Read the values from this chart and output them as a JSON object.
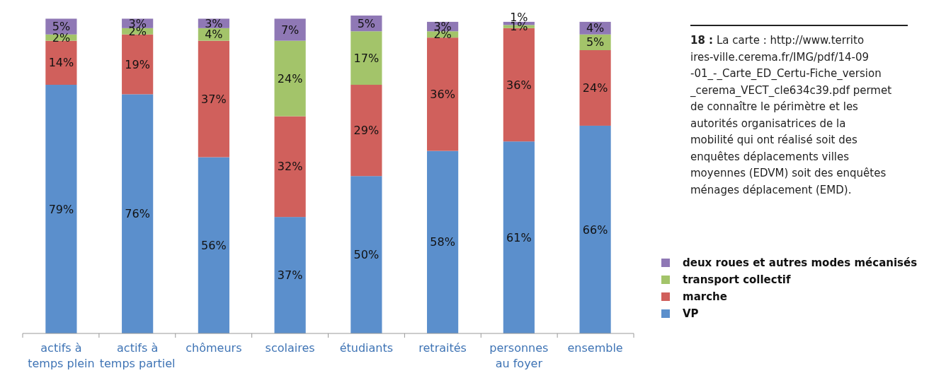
{
  "chart_data": {
    "type": "bar",
    "stacked": true,
    "legend": "right",
    "categories": [
      "actifs à temps plein",
      "actifs à temps partiel",
      "chômeurs",
      "scolaires",
      "étudiants",
      "retraités",
      "personnes au foyer",
      "ensemble"
    ],
    "series": [
      {
        "name": "VP",
        "color": "#5b8fcc",
        "values": [
          79,
          76,
          56,
          37,
          50,
          58,
          61,
          66
        ],
        "value_labels": [
          "79%",
          "76%",
          "56%",
          "37%",
          "50%",
          "58%",
          "61%",
          "66%"
        ]
      },
      {
        "name": "marche",
        "color": "#d0605c",
        "values": [
          14,
          19,
          37,
          32,
          29,
          36,
          36,
          24
        ],
        "value_labels": [
          "14%",
          "19%",
          "37%",
          "32%",
          "29%",
          "36%",
          "36%",
          "24%"
        ]
      },
      {
        "name": "transport collectif",
        "color": "#a3c46a",
        "values": [
          2,
          2,
          4,
          24,
          17,
          2,
          1,
          5
        ],
        "value_labels": [
          "2%",
          "2%",
          "4%",
          "24%",
          "17%",
          "2%",
          "1%",
          "5%"
        ]
      },
      {
        "name": "deux roues et autres modes mécanisés",
        "color": "#8f78b5",
        "values": [
          5,
          3,
          3,
          7,
          5,
          3,
          1,
          4
        ],
        "value_labels": [
          "5%",
          "3%",
          "3%",
          "7%",
          "5%",
          "3%",
          "1%",
          "4%"
        ]
      }
    ],
    "annotations": [
      "18 : La carte : http://www.territoires-ville.cerema.fr/IMG/pdf/14-09-01_-_Carte_ED_Certu-Fiche_version_cerema_VECT_cle634c39.pdf permet de connaître le périmètre et les autorités organisatrices de la mobilité qui ont réalisé soit des enquêtes déplacements villes moyennes (EDVM) soit des enquêtes ménages déplacement (EMD)."
    ]
  }
}
